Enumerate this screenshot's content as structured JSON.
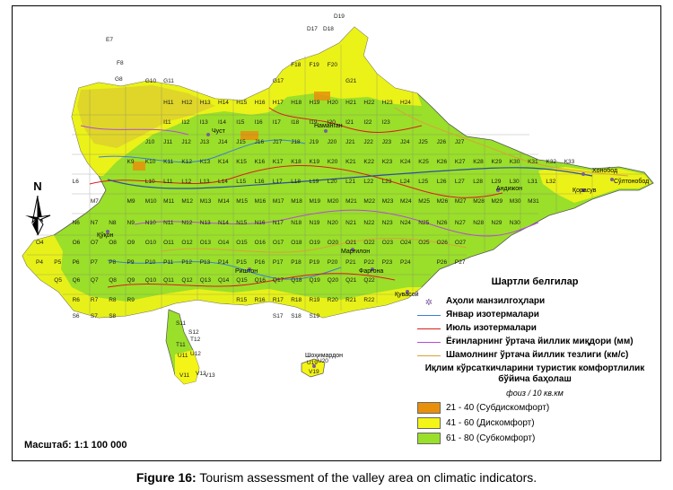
{
  "map": {
    "labels_sample": {
      "north": "N",
      "places": [
        {
          "name": "Чуст"
        },
        {
          "name": "Наманган"
        },
        {
          "name": "Андижон"
        },
        {
          "name": "Қўқон"
        },
        {
          "name": "Марғилон"
        },
        {
          "name": "Фарғона"
        },
        {
          "name": "Риштон"
        },
        {
          "name": "Қувасой"
        },
        {
          "name": "Шоҳимардон"
        },
        {
          "name": "Қорасув"
        },
        {
          "name": "Хонобод"
        },
        {
          "name": "Сўлтонобод"
        }
      ]
    },
    "grid_cells_sample": [
      "D19",
      "D17",
      "D18",
      "E7",
      "F8",
      "F18",
      "F19",
      "F20",
      "G17",
      "G21",
      "G8",
      "G10",
      "G11",
      "H16",
      "H11",
      "H12",
      "H13",
      "H14",
      "H15",
      "H17",
      "H18",
      "H19",
      "H20",
      "H21",
      "H22",
      "H23",
      "H24",
      "I11",
      "I12",
      "I13",
      "I14",
      "I15",
      "I16",
      "I17",
      "I18",
      "I19",
      "I20",
      "I21",
      "I22",
      "I23",
      "J10",
      "J11",
      "J12",
      "J13",
      "J14",
      "J15",
      "J16",
      "J17",
      "J18",
      "J19",
      "J20",
      "J21",
      "J22",
      "J23",
      "J24",
      "J25",
      "J26",
      "J27",
      "K9",
      "K10",
      "K11",
      "K12",
      "K13",
      "K14",
      "K15",
      "K16",
      "K17",
      "K18",
      "K19",
      "K20",
      "K21",
      "K22",
      "K23",
      "K24",
      "K25",
      "K26",
      "K27",
      "K28",
      "K29",
      "K30",
      "K31",
      "K32",
      "K33",
      "L6",
      "L10",
      "L11",
      "L12",
      "L13",
      "L14",
      "L15",
      "L16",
      "L17",
      "L18",
      "L19",
      "L20",
      "L21",
      "L22",
      "L23",
      "L24",
      "L25",
      "L26",
      "L27",
      "L28",
      "L29",
      "L30",
      "L31",
      "L32",
      "M7",
      "M9",
      "M10",
      "M11",
      "M12",
      "M13",
      "M14",
      "M15",
      "M16",
      "M17",
      "M18",
      "M19",
      "M20",
      "M21",
      "M22",
      "M23",
      "M24",
      "M25",
      "M26",
      "M27",
      "M28",
      "M29",
      "M30",
      "M31",
      "N6",
      "N7",
      "N8",
      "N9",
      "N10",
      "N11",
      "N12",
      "N13",
      "N14",
      "N15",
      "N16",
      "N17",
      "N18",
      "N19",
      "N20",
      "N21",
      "N22",
      "N23",
      "N24",
      "N25",
      "N26",
      "N27",
      "N28",
      "N29",
      "N30",
      "O4",
      "O6",
      "O7",
      "O8",
      "O9",
      "O10",
      "O11",
      "O12",
      "O13",
      "O14",
      "O15",
      "O16",
      "O17",
      "O18",
      "O19",
      "O20",
      "O21",
      "O22",
      "O23",
      "O24",
      "O25",
      "O26",
      "O27",
      "P4",
      "P5",
      "P6",
      "P7",
      "P8",
      "P9",
      "P10",
      "P11",
      "P12",
      "P13",
      "P14",
      "P15",
      "P16",
      "P17",
      "P18",
      "P19",
      "P20",
      "P21",
      "P22",
      "P23",
      "P24",
      "P26",
      "P27",
      "Q5",
      "Q6",
      "Q7",
      "Q8",
      "Q9",
      "Q10",
      "Q11",
      "Q12",
      "Q13",
      "Q14",
      "Q15",
      "Q16",
      "Q17",
      "Q18",
      "Q19",
      "Q20",
      "Q21",
      "Q22",
      "R6",
      "R7",
      "R8",
      "R9",
      "R15",
      "R16",
      "R17",
      "R18",
      "R19",
      "R20",
      "R21",
      "R22",
      "S6",
      "S7",
      "S8",
      "S11",
      "S12",
      "S17",
      "S18",
      "S19",
      "T11",
      "T12",
      "U11",
      "U12",
      "U19",
      "U20",
      "V11",
      "V12",
      "V13",
      "V19"
    ]
  },
  "legend": {
    "title": "Шартли белгилар",
    "items": [
      {
        "label": "Аҳоли манзилгоҳлари",
        "symbol": "settlement-icon",
        "color": "#7a5c9e"
      },
      {
        "label": "Январ изотермалари",
        "symbol": "line",
        "color": "#3a7fd5"
      },
      {
        "label": "Июль изотермалари",
        "symbol": "line",
        "color": "#d81e1e"
      },
      {
        "label": "Ёғинларнинг ўртача йиллик миқдори (мм)",
        "symbol": "line",
        "color": "#b54ad8"
      },
      {
        "label": "Шамолнинг ўртача йиллик тезлиги (км/с)",
        "symbol": "line",
        "color": "#d9a13a"
      }
    ],
    "assessment_title": "Иқлим кўрсаткичларини туристик комфортлилик бўйича баҳолаш",
    "unit": "фоиз / 10 кв.км",
    "classes": [
      {
        "range": "21 - 40 (Субдискомфорт)",
        "color": "#e8900c"
      },
      {
        "range": "41 - 60 (Дискомфорт)",
        "color": "#f4f416"
      },
      {
        "range": "61 - 80 (Субкомфорт)",
        "color": "#9adf2a"
      }
    ]
  },
  "scale": "Масштаб: 1:1 100 000",
  "caption": {
    "label": "Figure 16:",
    "text": " Tourism assessment of the valley area on climatic indicators."
  }
}
